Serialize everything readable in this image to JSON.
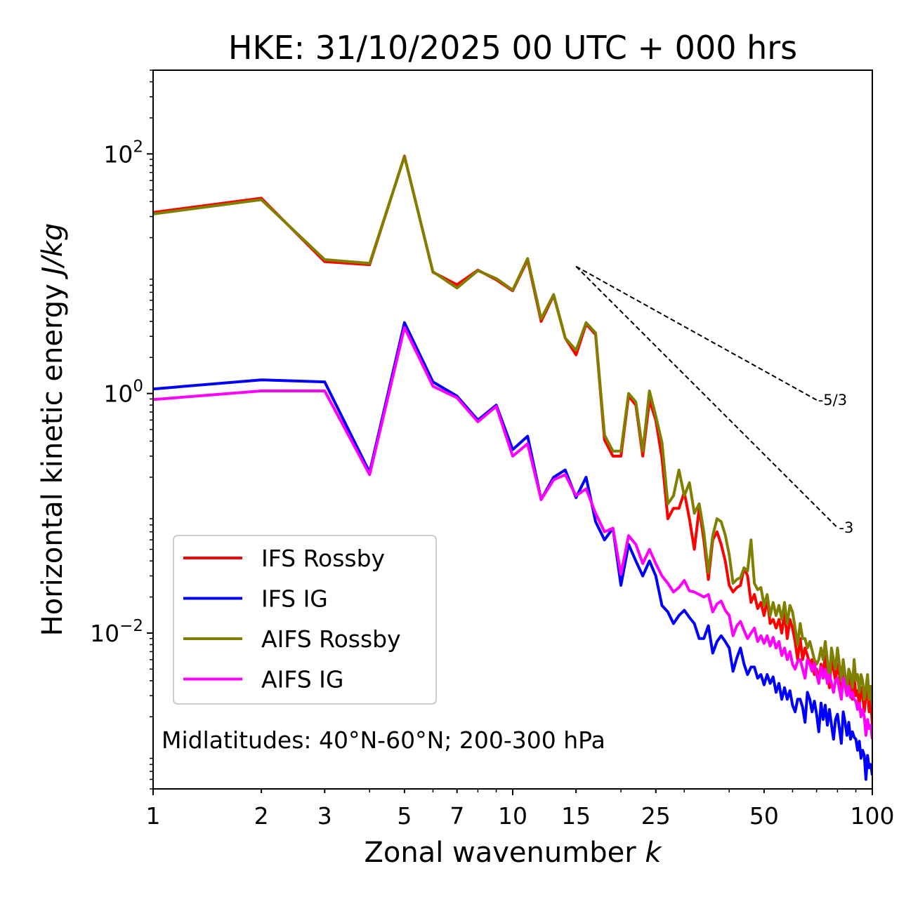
{
  "chart_data": {
    "type": "line",
    "title": "HKE: 31/10/2025 00 UTC + 000 hrs",
    "xlabel_main": "Zonal wavenumber ",
    "xlabel_var": "k",
    "ylabel_main": "Horizontal kinetic energy ",
    "ylabel_unit": "J/kg",
    "xscale": "log",
    "yscale": "log",
    "xlim": [
      1,
      100
    ],
    "ylim": [
      0.0005,
      500
    ],
    "x_ticks": [
      {
        "value": 1,
        "label": "1"
      },
      {
        "value": 2,
        "label": "2"
      },
      {
        "value": 3,
        "label": "3"
      },
      {
        "value": 5,
        "label": "5"
      },
      {
        "value": 7,
        "label": "7"
      },
      {
        "value": 10,
        "label": "10"
      },
      {
        "value": 15,
        "label": "15"
      },
      {
        "value": 25,
        "label": "25"
      },
      {
        "value": 50,
        "label": "50"
      },
      {
        "value": 100,
        "label": "100"
      }
    ],
    "y_ticks": [
      {
        "value": 100,
        "base": "10",
        "exp": "2"
      },
      {
        "value": 1,
        "base": "10",
        "exp": "0"
      },
      {
        "value": 0.01,
        "base": "10",
        "exp": "−2"
      }
    ],
    "annotation": "Midlatitudes: 40°N-60°N; 200-300 hPa",
    "legend_position": "lower-left",
    "reference_lines": [
      {
        "label": "-5/3",
        "slope": -1.6667,
        "x_start": 15,
        "y_start": 11.5,
        "x_end": 70
      },
      {
        "label": "-3",
        "slope": -3,
        "x_start": 15,
        "y_start": 11.5,
        "x_end": 80
      }
    ],
    "k": [
      1,
      2,
      3,
      4,
      5,
      6,
      7,
      8,
      9,
      10,
      11,
      12,
      13,
      14,
      15,
      16,
      17,
      18,
      19,
      20,
      21,
      22,
      23,
      24,
      25,
      26,
      27,
      28,
      29,
      30,
      31,
      32,
      33,
      34,
      35,
      36,
      37,
      38,
      39,
      40,
      41,
      42,
      43,
      44,
      45,
      46,
      47,
      48,
      49,
      50,
      51,
      52,
      53,
      54,
      55,
      56,
      57,
      58,
      59,
      60,
      61,
      62,
      63,
      64,
      65,
      66,
      67,
      68,
      69,
      70,
      71,
      72,
      73,
      74,
      75,
      76,
      77,
      78,
      79,
      80,
      81,
      82,
      83,
      84,
      85,
      86,
      87,
      88,
      89,
      90,
      91,
      92,
      93,
      94,
      95,
      96,
      97,
      98,
      99,
      100
    ],
    "series": [
      {
        "name": "IFS Rossby",
        "color": "#ff0000",
        "values": [
          32.5,
          42.7,
          12.6,
          11.9,
          96.0,
          10.3,
          8.1,
          10.7,
          8.9,
          7.2,
          13.0,
          4.0,
          6.6,
          2.9,
          2.1,
          3.8,
          3.1,
          0.41,
          0.3,
          0.3,
          0.95,
          0.8,
          0.3,
          0.88,
          0.6,
          0.29,
          0.09,
          0.11,
          0.11,
          0.15,
          0.09,
          0.05,
          0.11,
          0.06,
          0.028,
          0.06,
          0.07,
          0.055,
          0.04,
          0.025,
          0.022,
          0.024,
          0.025,
          0.035,
          0.03,
          0.018,
          0.021,
          0.016,
          0.018,
          0.014,
          0.019,
          0.012,
          0.013,
          0.011,
          0.013,
          0.01,
          0.015,
          0.009,
          0.013,
          0.011,
          0.0085,
          0.006,
          0.009,
          0.006,
          0.0075,
          0.0065,
          0.0055,
          0.006,
          0.0045,
          0.005,
          0.004,
          0.0055,
          0.0045,
          0.0065,
          0.0045,
          0.0035,
          0.006,
          0.005,
          0.004,
          0.0055,
          0.0045,
          0.0035,
          0.005,
          0.004,
          0.0032,
          0.0042,
          0.0036,
          0.0028,
          0.0045,
          0.003,
          0.0033,
          0.0025,
          0.0035,
          0.003,
          0.0022,
          0.003,
          0.0035,
          0.0022,
          0.0028,
          0.0017
        ]
      },
      {
        "name": "IFS IG",
        "color": "#0000ff",
        "values": [
          1.09,
          1.3,
          1.25,
          0.22,
          3.9,
          1.25,
          0.95,
          0.6,
          0.8,
          0.34,
          0.44,
          0.13,
          0.2,
          0.23,
          0.135,
          0.2,
          0.085,
          0.06,
          0.075,
          0.025,
          0.055,
          0.04,
          0.03,
          0.04,
          0.03,
          0.017,
          0.015,
          0.012,
          0.014,
          0.0155,
          0.0135,
          0.012,
          0.009,
          0.009,
          0.0115,
          0.0068,
          0.0085,
          0.0095,
          0.0085,
          0.0075,
          0.0048,
          0.0062,
          0.0075,
          0.0055,
          0.0045,
          0.0052,
          0.0052,
          0.0042,
          0.0045,
          0.0037,
          0.0045,
          0.0038,
          0.0043,
          0.0032,
          0.0038,
          0.0028,
          0.0035,
          0.0028,
          0.0033,
          0.0025,
          0.0022,
          0.0028,
          0.0028,
          0.0024,
          0.0018,
          0.0032,
          0.0028,
          0.0022,
          0.0027,
          0.0021,
          0.0015,
          0.0026,
          0.0019,
          0.0025,
          0.0017,
          0.0023,
          0.0017,
          0.0013,
          0.0019,
          0.0021,
          0.0016,
          0.0012,
          0.0022,
          0.0018,
          0.0014,
          0.0018,
          0.0013,
          0.0015,
          0.00135,
          0.0013,
          0.00105,
          0.00125,
          0.0009,
          0.00105,
          0.00095,
          0.0006,
          0.00095,
          0.00075,
          0.0008,
          0.00065
        ]
      },
      {
        "name": "AIFS Rossby",
        "color": "#808000",
        "values": [
          31.5,
          41.5,
          13.1,
          12.2,
          95.0,
          10.4,
          7.6,
          10.6,
          9.1,
          7.3,
          13.4,
          4.2,
          6.7,
          2.9,
          2.3,
          3.9,
          3.2,
          0.45,
          0.33,
          0.33,
          1.0,
          0.85,
          0.33,
          1.05,
          0.65,
          0.39,
          0.12,
          0.14,
          0.23,
          0.14,
          0.18,
          0.1,
          0.12,
          0.07,
          0.032,
          0.065,
          0.09,
          0.085,
          0.066,
          0.045,
          0.026,
          0.028,
          0.029,
          0.035,
          0.033,
          0.06,
          0.026,
          0.023,
          0.024,
          0.017,
          0.021,
          0.014,
          0.018,
          0.014,
          0.017,
          0.013,
          0.018,
          0.012,
          0.017,
          0.015,
          0.011,
          0.008,
          0.012,
          0.009,
          0.009,
          0.0075,
          0.0085,
          0.0072,
          0.006,
          0.0055,
          0.006,
          0.0075,
          0.006,
          0.0085,
          0.006,
          0.004,
          0.0075,
          0.006,
          0.005,
          0.0075,
          0.0055,
          0.004,
          0.006,
          0.0045,
          0.0035,
          0.005,
          0.0045,
          0.0035,
          0.006,
          0.004,
          0.0045,
          0.0032,
          0.0045,
          0.004,
          0.0028,
          0.0035,
          0.0045,
          0.0028,
          0.0036,
          0.0025
        ]
      },
      {
        "name": "AIFS IG",
        "color": "#ff00ff",
        "values": [
          0.89,
          1.05,
          1.05,
          0.21,
          3.55,
          1.15,
          0.92,
          0.58,
          0.78,
          0.3,
          0.38,
          0.13,
          0.19,
          0.21,
          0.14,
          0.16,
          0.1,
          0.07,
          0.075,
          0.031,
          0.065,
          0.055,
          0.038,
          0.05,
          0.038,
          0.03,
          0.026,
          0.022,
          0.024,
          0.0275,
          0.0225,
          0.022,
          0.021,
          0.02,
          0.021,
          0.015,
          0.0175,
          0.0185,
          0.0155,
          0.014,
          0.0095,
          0.0115,
          0.0125,
          0.0105,
          0.009,
          0.01,
          0.011,
          0.0085,
          0.0095,
          0.0082,
          0.0095,
          0.0078,
          0.0092,
          0.0075,
          0.0085,
          0.0065,
          0.0075,
          0.006,
          0.007,
          0.0055,
          0.005,
          0.0058,
          0.006,
          0.005,
          0.0042,
          0.006,
          0.0055,
          0.0048,
          0.0056,
          0.0045,
          0.0038,
          0.0052,
          0.0042,
          0.005,
          0.0038,
          0.0045,
          0.0038,
          0.0032,
          0.004,
          0.0042,
          0.0034,
          0.0028,
          0.0042,
          0.0036,
          0.003,
          0.0036,
          0.0029,
          0.0032,
          0.0028,
          0.0027,
          0.0023,
          0.0026,
          0.002,
          0.0023,
          0.002,
          0.0014,
          0.0019,
          0.0016,
          0.0017,
          0.0013
        ]
      }
    ]
  }
}
